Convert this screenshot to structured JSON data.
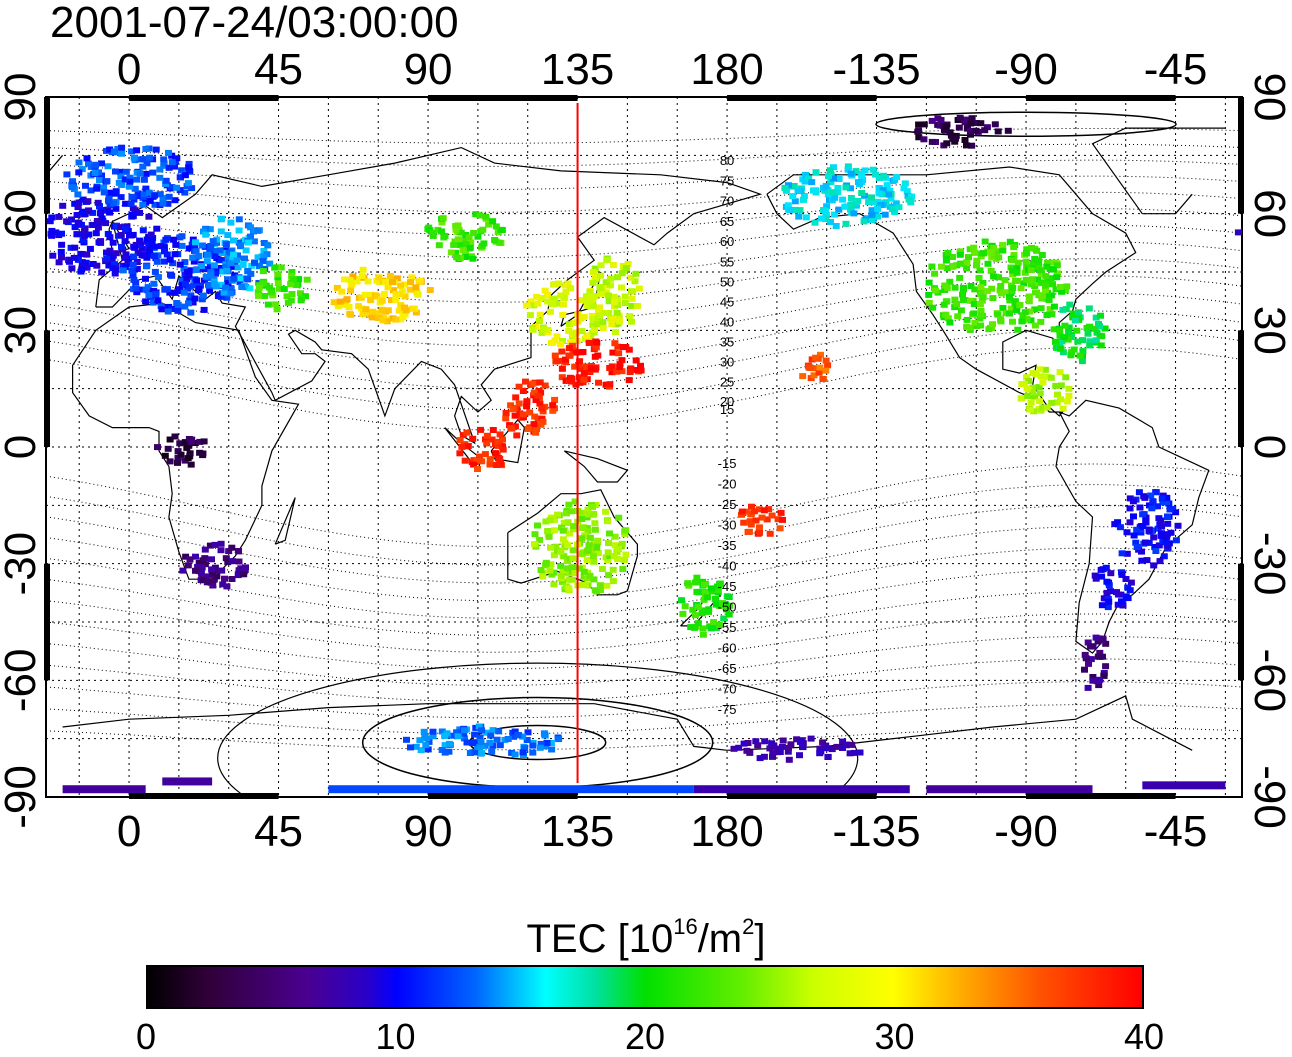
{
  "title": "2001-07-24/03:00:00",
  "map": {
    "lon_top_labels": [
      "0",
      "45",
      "90",
      "135",
      "180",
      "-135",
      "-90",
      "-45"
    ],
    "lon_bottom_labels": [
      "0",
      "45",
      "90",
      "135",
      "180",
      "-135",
      "-90",
      "-45"
    ],
    "lat_left_labels": [
      "90",
      "60",
      "30",
      "0",
      "-30",
      "-60",
      "-90"
    ],
    "lat_right_labels": [
      "90",
      "60",
      "30",
      "0",
      "-30",
      "-60",
      "-90"
    ],
    "lon_range": [
      -25,
      335
    ],
    "lat_range": [
      -90,
      90
    ],
    "marker_longitude": 135,
    "marker_color": "#ff0000",
    "contour_labels_north": [
      "80",
      "75",
      "70",
      "65",
      "60",
      "55",
      "50",
      "45",
      "40",
      "35",
      "30",
      "25",
      "20",
      "15"
    ],
    "contour_labels_south": [
      "-15",
      "-20",
      "-25",
      "-30",
      "-35",
      "-40",
      "-45",
      "-50",
      "-55",
      "-60",
      "-65",
      "-70",
      "-75"
    ]
  },
  "colorbar": {
    "label_main": "TEC  [10",
    "label_exp": "16",
    "label_mid": "/m",
    "label_exp2": "2",
    "label_end": "]",
    "ticks": [
      "0",
      "10",
      "20",
      "30",
      "40"
    ],
    "range": [
      0,
      40
    ]
  },
  "colors": {
    "c0": "#1a0020",
    "c5": "#4a0090",
    "c10": "#0000ff",
    "c15": "#00ccff",
    "c20": "#00e000",
    "c25": "#99ee00",
    "c30": "#ffee00",
    "c35": "#ff8800",
    "c40": "#ff0000"
  },
  "tec_clusters": [
    {
      "lon": -10,
      "lat": 55,
      "rx": 18,
      "ry": 10,
      "tec": 9
    },
    {
      "lon": 15,
      "lat": 45,
      "rx": 18,
      "ry": 10,
      "tec": 11
    },
    {
      "lon": 0,
      "lat": 70,
      "rx": 20,
      "ry": 8,
      "tec": 12
    },
    {
      "lon": 30,
      "lat": 50,
      "rx": 12,
      "ry": 10,
      "tec": 14
    },
    {
      "lon": 45,
      "lat": 42,
      "rx": 8,
      "ry": 6,
      "tec": 22
    },
    {
      "lon": 75,
      "lat": 40,
      "rx": 15,
      "ry": 7,
      "tec": 31
    },
    {
      "lon": 100,
      "lat": 55,
      "rx": 12,
      "ry": 6,
      "tec": 22
    },
    {
      "lon": 130,
      "lat": 35,
      "rx": 12,
      "ry": 8,
      "tec": 28
    },
    {
      "lon": 140,
      "lat": 22,
      "rx": 14,
      "ry": 6,
      "tec": 39
    },
    {
      "lon": 145,
      "lat": 40,
      "rx": 8,
      "ry": 10,
      "tec": 27
    },
    {
      "lon": 120,
      "lat": 10,
      "rx": 8,
      "ry": 8,
      "tec": 38
    },
    {
      "lon": 105,
      "lat": 0,
      "rx": 8,
      "ry": 6,
      "tec": 38
    },
    {
      "lon": 15,
      "lat": 0,
      "rx": 8,
      "ry": 4,
      "tec": 1
    },
    {
      "lon": 25,
      "lat": -30,
      "rx": 10,
      "ry": 6,
      "tec": 4
    },
    {
      "lon": 135,
      "lat": -25,
      "rx": 15,
      "ry": 12,
      "tec": 25
    },
    {
      "lon": 172,
      "lat": -40,
      "rx": 8,
      "ry": 8,
      "tec": 21
    },
    {
      "lon": 190,
      "lat": -18,
      "rx": 8,
      "ry": 4,
      "tec": 38
    },
    {
      "lon": 205,
      "lat": 21,
      "rx": 5,
      "ry": 4,
      "tec": 36
    },
    {
      "lon": 215,
      "lat": 65,
      "rx": 20,
      "ry": 8,
      "tec": 16
    },
    {
      "lon": 260,
      "lat": 42,
      "rx": 22,
      "ry": 12,
      "tec": 22
    },
    {
      "lon": 285,
      "lat": 30,
      "rx": 8,
      "ry": 8,
      "tec": 20
    },
    {
      "lon": 275,
      "lat": 15,
      "rx": 8,
      "ry": 6,
      "tec": 26
    },
    {
      "lon": 305,
      "lat": -20,
      "rx": 10,
      "ry": 10,
      "tec": 10
    },
    {
      "lon": 295,
      "lat": -35,
      "rx": 6,
      "ry": 6,
      "tec": 9
    },
    {
      "lon": 290,
      "lat": -55,
      "rx": 4,
      "ry": 8,
      "tec": 4
    },
    {
      "lon": 105,
      "lat": -75,
      "rx": 25,
      "ry": 4,
      "tec": 13
    },
    {
      "lon": 200,
      "lat": -77,
      "rx": 20,
      "ry": 3,
      "tec": 6
    },
    {
      "lon": 250,
      "lat": 82,
      "rx": 15,
      "ry": 4,
      "tec": 2
    }
  ],
  "tec_bands": [
    {
      "lon1": -20,
      "lon2": 5,
      "lat": -88,
      "tec": 5
    },
    {
      "lon1": 10,
      "lon2": 25,
      "lat": -86,
      "tec": 5
    },
    {
      "lon1": 60,
      "lon2": 170,
      "lat": -88,
      "tec": 12
    },
    {
      "lon1": 170,
      "lon2": 235,
      "lat": -88,
      "tec": 6
    },
    {
      "lon1": 240,
      "lon2": 290,
      "lat": -88,
      "tec": 5
    },
    {
      "lon1": 305,
      "lon2": 330,
      "lat": -87,
      "tec": 6
    }
  ]
}
